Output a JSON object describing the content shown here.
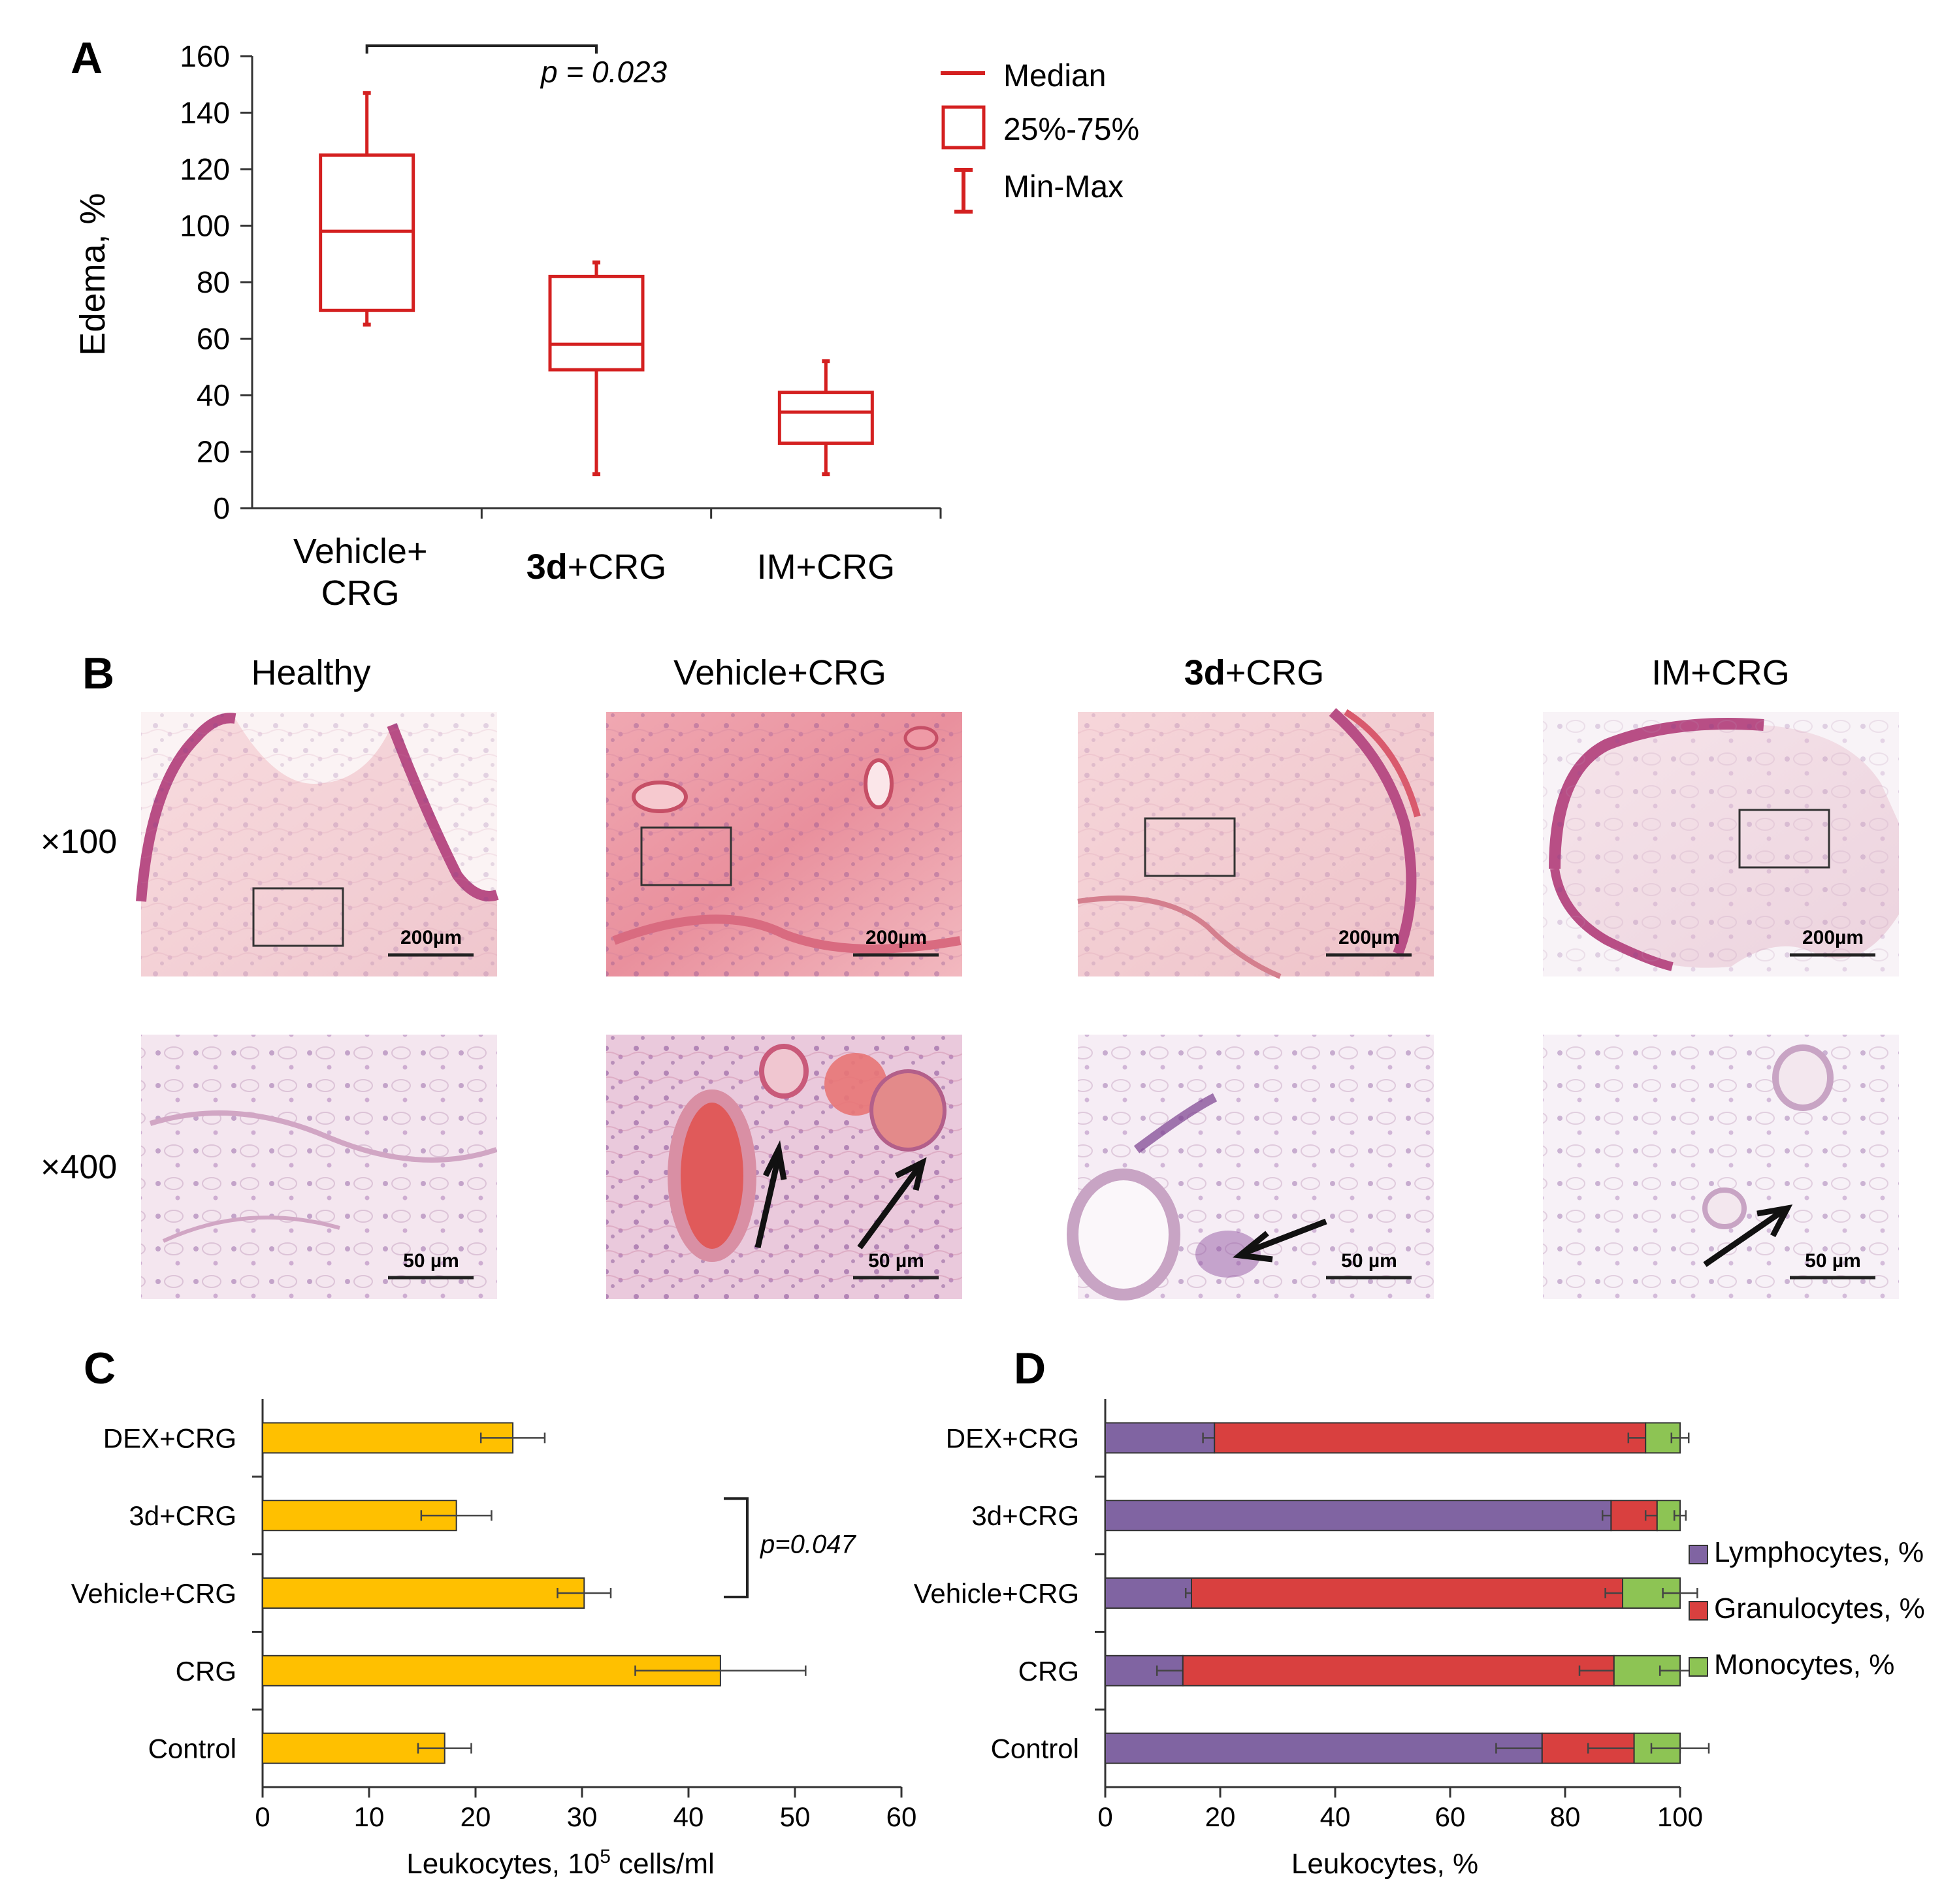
{
  "colors": {
    "box_red": "#d42020",
    "bar_yellow": "#ffc000",
    "lymph_purple": "#8064a2",
    "gran_red": "#d9403f",
    "mono_green": "#8dc454",
    "text": "#222222"
  },
  "panel_b": {
    "letter": "B",
    "columns": [
      {
        "label": "Healthy"
      },
      {
        "bold": "",
        "label": "Vehicle+CRG"
      },
      {
        "bold": "3d",
        "label": "+CRG"
      },
      {
        "bold": "",
        "label": "IM+CRG"
      }
    ],
    "rows": [
      "×100",
      "×400"
    ],
    "scalebars": {
      "top": "200µm",
      "bottom": "50 µm"
    }
  },
  "chart_data": [
    {
      "panel": "A",
      "type": "box",
      "ylabel": "Edema, %",
      "ylim": [
        0,
        160
      ],
      "yticks": [
        0,
        20,
        40,
        60,
        80,
        100,
        120,
        140,
        160
      ],
      "categories": [
        "Vehicle+ CRG",
        "3d+CRG",
        "IM+CRG"
      ],
      "category_lines": [
        {
          "bold": "",
          "lines": [
            "Vehicle+",
            "CRG"
          ]
        },
        {
          "bold": "3d",
          "lines": [
            "+CRG"
          ]
        },
        {
          "bold": "",
          "lines": [
            "IM+CRG"
          ]
        }
      ],
      "boxes": [
        {
          "min": 65,
          "q1": 70,
          "median": 98,
          "q3": 125,
          "max": 147
        },
        {
          "min": 12,
          "q1": 49,
          "median": 58,
          "q3": 82,
          "max": 87
        },
        {
          "min": 12,
          "q1": 23,
          "median": 34,
          "q3": 41,
          "max": 52
        }
      ],
      "annotation": {
        "text": "p = 0.023",
        "from": 0,
        "to": 1
      },
      "legend": [
        "Median",
        "25%-75%",
        "Min-Max"
      ]
    },
    {
      "panel": "C",
      "type": "bar",
      "orientation": "horizontal",
      "categories": [
        "DEX+CRG",
        "3d+CRG",
        "Vehicle+CRG",
        "CRG",
        "Control"
      ],
      "values": [
        23.5,
        18.2,
        30.2,
        43,
        17.1
      ],
      "errors": [
        3,
        3.3,
        2.5,
        8,
        2.5
      ],
      "xlabel": "Leukocytes, 10",
      "xlabel_sup": "5",
      "xlabel_suffix": " cells/ml",
      "xlim": [
        0,
        60
      ],
      "xticks": [
        0,
        10,
        20,
        30,
        40,
        50,
        60
      ],
      "annotation": {
        "text": "p=0.047",
        "from": 1,
        "to": 2
      }
    },
    {
      "panel": "D",
      "type": "bar",
      "orientation": "horizontal",
      "stacked": true,
      "categories": [
        "DEX+CRG",
        "3d+CRG",
        "Vehicle+CRG",
        "CRG",
        "Control"
      ],
      "series": [
        {
          "name": "Lymphocytes, %",
          "values": [
            19,
            88,
            15,
            13.5,
            76
          ],
          "errors": [
            2,
            1.5,
            1,
            4.5,
            8
          ]
        },
        {
          "name": "Granulocytes, %",
          "values": [
            75,
            8,
            75,
            75,
            16
          ],
          "errors": [
            3,
            2,
            3,
            6,
            8
          ]
        },
        {
          "name": "Monocytes, %",
          "values": [
            6,
            4,
            10,
            11.5,
            8
          ],
          "errors": [
            1.5,
            1,
            3,
            3.5,
            5
          ]
        }
      ],
      "xlabel": "Leukocytes, %",
      "xlim": [
        0,
        100
      ],
      "xticks": [
        0,
        20,
        40,
        60,
        80,
        100
      ]
    }
  ]
}
